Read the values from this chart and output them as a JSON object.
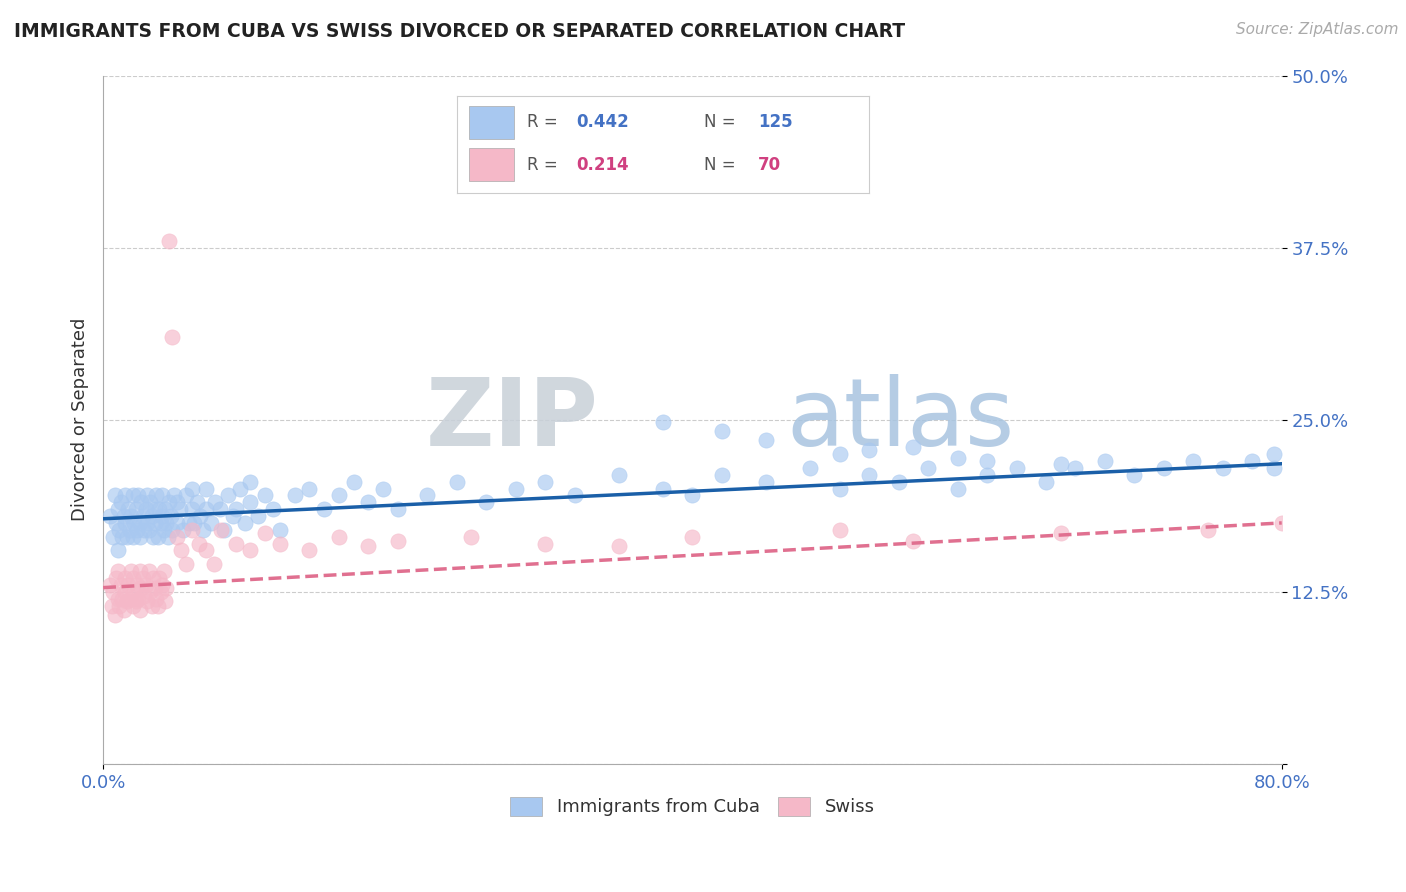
{
  "title": "IMMIGRANTS FROM CUBA VS SWISS DIVORCED OR SEPARATED CORRELATION CHART",
  "source_text": "Source: ZipAtlas.com",
  "ylabel": "Divorced or Separated",
  "legend_label_blue": "Immigrants from Cuba",
  "legend_label_pink": "Swiss",
  "xmin": 0.0,
  "xmax": 0.8,
  "ymin": 0.0,
  "ymax": 0.5,
  "yticks": [
    0.0,
    0.125,
    0.25,
    0.375,
    0.5
  ],
  "ytick_labels": [
    "",
    "12.5%",
    "25.0%",
    "37.5%",
    "50.0%"
  ],
  "xtick_labels": [
    "0.0%",
    "80.0%"
  ],
  "R_blue": 0.442,
  "N_blue": 125,
  "R_pink": 0.214,
  "N_pink": 70,
  "blue_color": "#a8c8f0",
  "pink_color": "#f5b8c8",
  "blue_line_color": "#1a5fa8",
  "pink_line_color": "#e07090",
  "title_color": "#222222",
  "tick_color": "#4472c4",
  "legend_r_color_blue": "#4472c4",
  "legend_r_color_pink": "#d04080",
  "watermark_color": "#dde8f5",
  "background_color": "#ffffff",
  "blue_x": [
    0.005,
    0.007,
    0.008,
    0.009,
    0.01,
    0.01,
    0.011,
    0.012,
    0.013,
    0.014,
    0.015,
    0.015,
    0.016,
    0.017,
    0.018,
    0.019,
    0.02,
    0.02,
    0.021,
    0.022,
    0.023,
    0.024,
    0.025,
    0.025,
    0.026,
    0.027,
    0.028,
    0.029,
    0.03,
    0.03,
    0.031,
    0.032,
    0.033,
    0.034,
    0.035,
    0.035,
    0.036,
    0.037,
    0.038,
    0.039,
    0.04,
    0.04,
    0.041,
    0.042,
    0.043,
    0.044,
    0.045,
    0.046,
    0.047,
    0.048,
    0.05,
    0.05,
    0.052,
    0.054,
    0.056,
    0.058,
    0.06,
    0.06,
    0.062,
    0.064,
    0.066,
    0.068,
    0.07,
    0.07,
    0.073,
    0.076,
    0.079,
    0.082,
    0.085,
    0.088,
    0.09,
    0.093,
    0.096,
    0.1,
    0.1,
    0.105,
    0.11,
    0.115,
    0.12,
    0.13,
    0.14,
    0.15,
    0.16,
    0.17,
    0.18,
    0.19,
    0.2,
    0.22,
    0.24,
    0.26,
    0.28,
    0.3,
    0.32,
    0.35,
    0.38,
    0.4,
    0.42,
    0.45,
    0.48,
    0.5,
    0.52,
    0.54,
    0.56,
    0.58,
    0.6,
    0.62,
    0.64,
    0.66,
    0.68,
    0.7,
    0.72,
    0.74,
    0.76,
    0.78,
    0.795,
    0.795,
    0.38,
    0.42,
    0.5,
    0.55,
    0.6,
    0.45,
    0.52,
    0.58,
    0.65
  ],
  "blue_y": [
    0.18,
    0.165,
    0.195,
    0.175,
    0.185,
    0.155,
    0.17,
    0.19,
    0.165,
    0.18,
    0.175,
    0.195,
    0.165,
    0.185,
    0.17,
    0.18,
    0.165,
    0.195,
    0.175,
    0.185,
    0.17,
    0.195,
    0.175,
    0.165,
    0.19,
    0.18,
    0.17,
    0.185,
    0.175,
    0.195,
    0.17,
    0.19,
    0.18,
    0.165,
    0.185,
    0.175,
    0.195,
    0.165,
    0.185,
    0.175,
    0.18,
    0.195,
    0.17,
    0.185,
    0.175,
    0.165,
    0.19,
    0.18,
    0.17,
    0.195,
    0.175,
    0.19,
    0.185,
    0.17,
    0.195,
    0.175,
    0.185,
    0.2,
    0.175,
    0.19,
    0.18,
    0.17,
    0.185,
    0.2,
    0.175,
    0.19,
    0.185,
    0.17,
    0.195,
    0.18,
    0.185,
    0.2,
    0.175,
    0.19,
    0.205,
    0.18,
    0.195,
    0.185,
    0.17,
    0.195,
    0.2,
    0.185,
    0.195,
    0.205,
    0.19,
    0.2,
    0.185,
    0.195,
    0.205,
    0.19,
    0.2,
    0.205,
    0.195,
    0.21,
    0.2,
    0.195,
    0.21,
    0.205,
    0.215,
    0.2,
    0.21,
    0.205,
    0.215,
    0.2,
    0.21,
    0.215,
    0.205,
    0.215,
    0.22,
    0.21,
    0.215,
    0.22,
    0.215,
    0.22,
    0.215,
    0.225,
    0.248,
    0.242,
    0.225,
    0.23,
    0.22,
    0.235,
    0.228,
    0.222,
    0.218
  ],
  "pink_x": [
    0.005,
    0.006,
    0.007,
    0.008,
    0.009,
    0.01,
    0.01,
    0.011,
    0.012,
    0.013,
    0.014,
    0.015,
    0.015,
    0.016,
    0.017,
    0.018,
    0.019,
    0.02,
    0.02,
    0.021,
    0.022,
    0.023,
    0.024,
    0.025,
    0.025,
    0.026,
    0.027,
    0.028,
    0.029,
    0.03,
    0.031,
    0.032,
    0.033,
    0.034,
    0.035,
    0.036,
    0.037,
    0.038,
    0.039,
    0.04,
    0.041,
    0.042,
    0.043,
    0.045,
    0.047,
    0.05,
    0.053,
    0.056,
    0.06,
    0.065,
    0.07,
    0.075,
    0.08,
    0.09,
    0.1,
    0.11,
    0.12,
    0.14,
    0.16,
    0.18,
    0.2,
    0.25,
    0.3,
    0.35,
    0.4,
    0.5,
    0.55,
    0.65,
    0.75,
    0.8
  ],
  "pink_y": [
    0.13,
    0.115,
    0.125,
    0.108,
    0.135,
    0.12,
    0.14,
    0.115,
    0.13,
    0.12,
    0.112,
    0.135,
    0.125,
    0.118,
    0.13,
    0.12,
    0.14,
    0.115,
    0.135,
    0.125,
    0.118,
    0.13,
    0.12,
    0.14,
    0.112,
    0.128,
    0.135,
    0.122,
    0.13,
    0.118,
    0.14,
    0.125,
    0.115,
    0.135,
    0.128,
    0.12,
    0.115,
    0.135,
    0.125,
    0.13,
    0.14,
    0.118,
    0.128,
    0.38,
    0.31,
    0.165,
    0.155,
    0.145,
    0.17,
    0.16,
    0.155,
    0.145,
    0.17,
    0.16,
    0.155,
    0.168,
    0.16,
    0.155,
    0.165,
    0.158,
    0.162,
    0.165,
    0.16,
    0.158,
    0.165,
    0.17,
    0.162,
    0.168,
    0.17,
    0.175
  ],
  "blue_line": [
    0.178,
    0.218
  ],
  "pink_line": [
    0.128,
    0.175
  ]
}
